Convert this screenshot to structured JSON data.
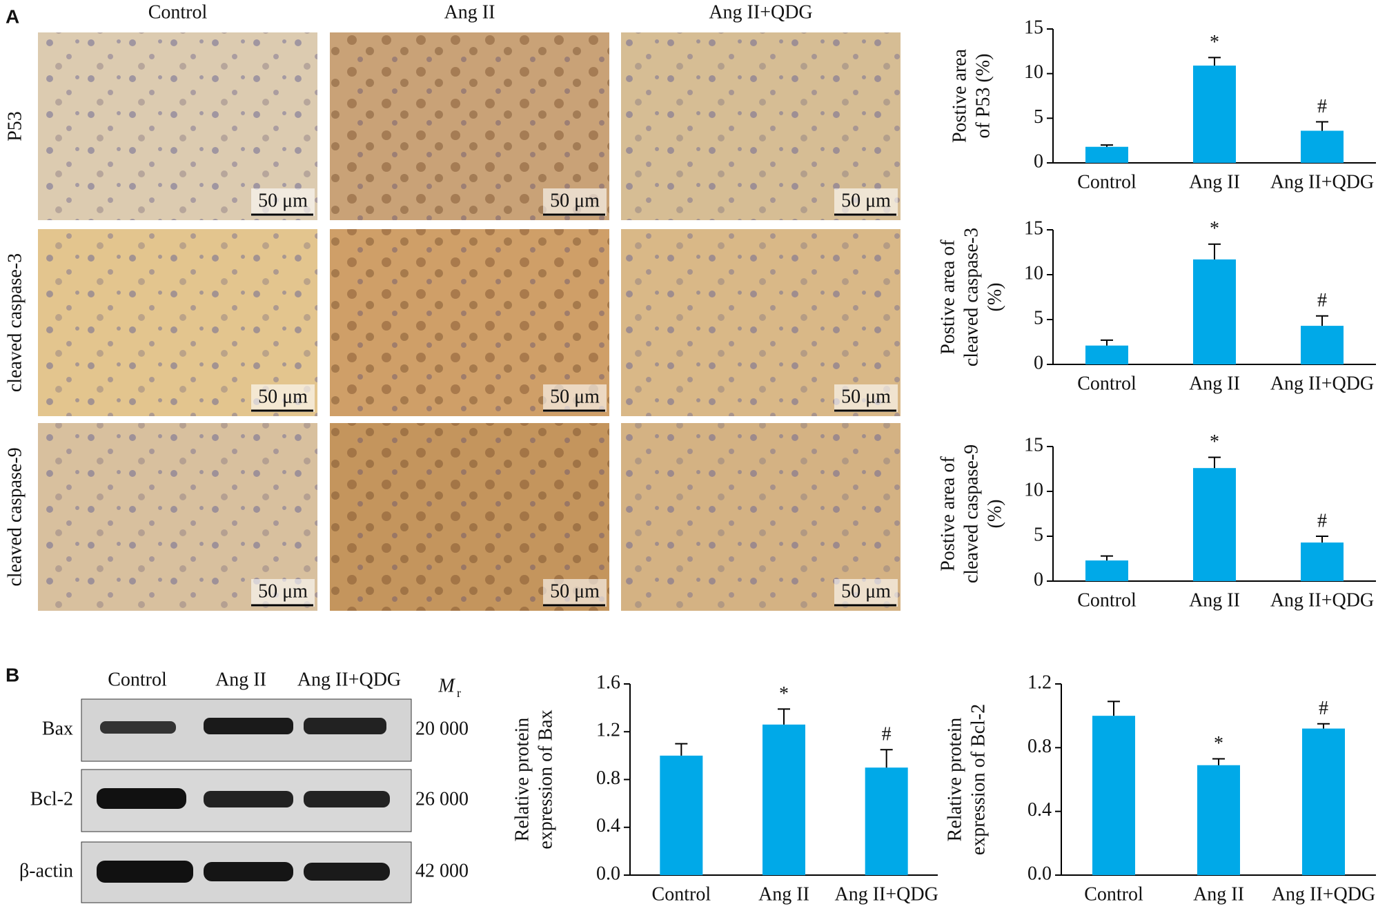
{
  "panel_a": {
    "label": "A",
    "columns": [
      "Control",
      "Ang II",
      "Ang II+QDG"
    ],
    "rows": [
      "P53",
      "cleaved caspase-3",
      "cleaved caspase-9"
    ],
    "scale_bar": "50 μm"
  },
  "panel_b": {
    "label": "B",
    "lanes": [
      "Control",
      "Ang II",
      "Ang II+QDG"
    ],
    "mr_label": "M",
    "mr_sub": "r",
    "bands": [
      {
        "name": "Bax",
        "mr": "20 000"
      },
      {
        "name": "Bcl-2",
        "mr": "26 000"
      },
      {
        "name": "β-actin",
        "mr": "42 000"
      }
    ]
  },
  "chart_data": [
    {
      "type": "bar",
      "ylabel": [
        "Postive area",
        "of P53 (%)"
      ],
      "categories": [
        "Control",
        "Ang II",
        "Ang II+QDG"
      ],
      "values": [
        1.8,
        10.9,
        3.6
      ],
      "errors": [
        0.2,
        0.9,
        1.0
      ],
      "markers": [
        null,
        "*",
        "#"
      ],
      "color": "#00a9e8",
      "ylim": [
        0,
        15
      ],
      "yticks": [
        0,
        5,
        10,
        15
      ]
    },
    {
      "type": "bar",
      "ylabel": [
        "Postive area of",
        "cleaved caspase-3",
        "(%)"
      ],
      "categories": [
        "Control",
        "Ang II",
        "Ang II+QDG"
      ],
      "values": [
        2.1,
        11.7,
        4.3
      ],
      "errors": [
        0.6,
        1.7,
        1.1
      ],
      "markers": [
        null,
        "*",
        "#"
      ],
      "color": "#00a9e8",
      "ylim": [
        0,
        15
      ],
      "yticks": [
        0,
        5,
        10,
        15
      ]
    },
    {
      "type": "bar",
      "ylabel": [
        "Postive area of",
        "cleaved caspase-9",
        "(%)"
      ],
      "categories": [
        "Control",
        "Ang II",
        "Ang II+QDG"
      ],
      "values": [
        2.3,
        12.6,
        4.3
      ],
      "errors": [
        0.5,
        1.2,
        0.7
      ],
      "markers": [
        null,
        "*",
        "#"
      ],
      "color": "#00a9e8",
      "ylim": [
        0,
        15
      ],
      "yticks": [
        0,
        5,
        10,
        15
      ]
    },
    {
      "type": "bar",
      "ylabel": [
        "Relative protein",
        "expression of Bax"
      ],
      "categories": [
        "Control",
        "Ang II",
        "Ang II+QDG"
      ],
      "values": [
        1.0,
        1.26,
        0.9
      ],
      "errors": [
        0.1,
        0.13,
        0.15
      ],
      "markers": [
        null,
        "*",
        "#"
      ],
      "color": "#00a9e8",
      "ylim": [
        0,
        1.6
      ],
      "yticks": [
        {
          "value": 0,
          "label": "0.0"
        },
        0.4,
        0.8,
        1.2,
        1.6
      ]
    },
    {
      "type": "bar",
      "ylabel": [
        "Relative protein",
        "expression of Bcl-2"
      ],
      "categories": [
        "Control",
        "Ang II",
        "Ang II+QDG"
      ],
      "values": [
        1.0,
        0.69,
        0.92
      ],
      "errors": [
        0.09,
        0.04,
        0.03
      ],
      "markers": [
        null,
        "*",
        "#"
      ],
      "color": "#00a9e8",
      "ylim": [
        0,
        1.2
      ],
      "yticks": [
        {
          "value": 0,
          "label": "0.0"
        },
        0.4,
        0.8,
        1.2
      ]
    }
  ]
}
